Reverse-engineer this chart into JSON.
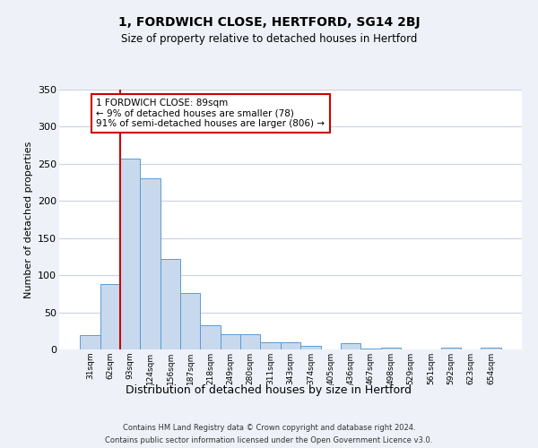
{
  "title": "1, FORDWICH CLOSE, HERTFORD, SG14 2BJ",
  "subtitle": "Size of property relative to detached houses in Hertford",
  "xlabel": "Distribution of detached houses by size in Hertford",
  "ylabel": "Number of detached properties",
  "bar_labels": [
    "31sqm",
    "62sqm",
    "93sqm",
    "124sqm",
    "156sqm",
    "187sqm",
    "218sqm",
    "249sqm",
    "280sqm",
    "311sqm",
    "343sqm",
    "374sqm",
    "405sqm",
    "436sqm",
    "467sqm",
    "498sqm",
    "529sqm",
    "561sqm",
    "592sqm",
    "623sqm",
    "654sqm"
  ],
  "bar_values": [
    19,
    88,
    257,
    230,
    122,
    76,
    33,
    20,
    20,
    10,
    10,
    5,
    0,
    8,
    1,
    3,
    0,
    0,
    2,
    0,
    2
  ],
  "bar_color": "#c8d9ee",
  "bar_edge_color": "#5b9bd5",
  "vline_color": "#cc0000",
  "vline_pos": 1.5,
  "ylim": [
    0,
    350
  ],
  "yticks": [
    0,
    50,
    100,
    150,
    200,
    250,
    300,
    350
  ],
  "annotation_text": "1 FORDWICH CLOSE: 89sqm\n← 9% of detached houses are smaller (78)\n91% of semi-detached houses are larger (806) →",
  "annotation_box_facecolor": "#ffffff",
  "annotation_box_edgecolor": "#cc0000",
  "footer_line1": "Contains HM Land Registry data © Crown copyright and database right 2024.",
  "footer_line2": "Contains public sector information licensed under the Open Government Licence v3.0.",
  "bg_color": "#eef2f8",
  "plot_bg_color": "#ffffff",
  "grid_color": "#c8d4e4"
}
